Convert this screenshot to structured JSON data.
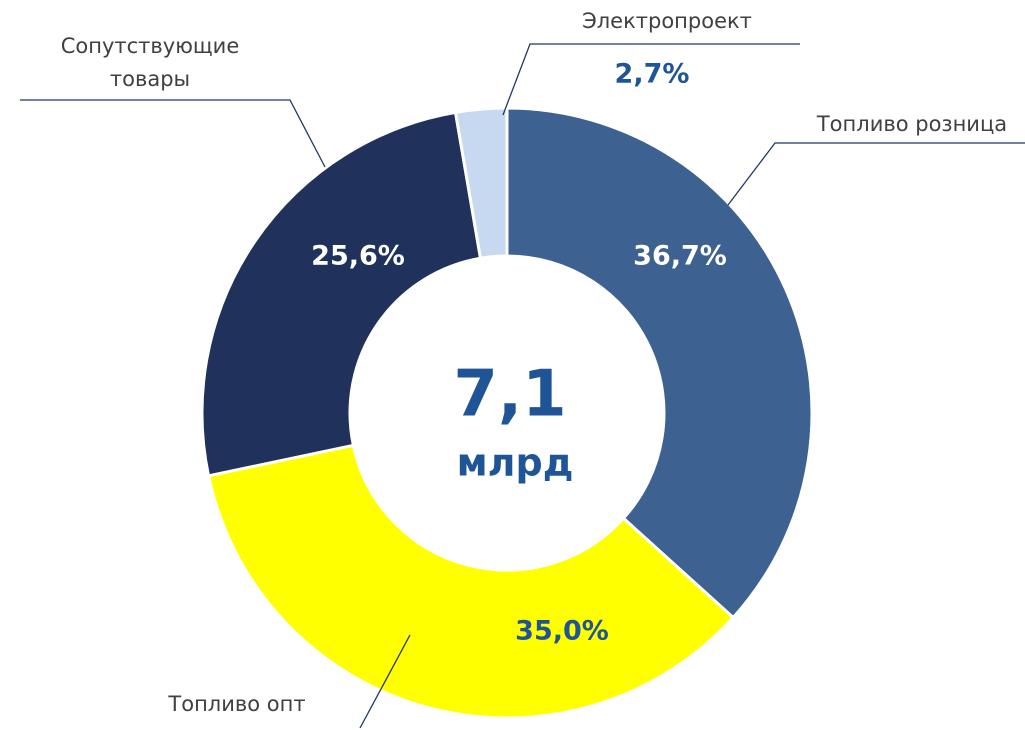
{
  "chart_data": {
    "type": "donut",
    "categories": [
      "Топливо розница",
      "Топливо опт",
      "Сопутствующие товары",
      "Электропроект"
    ],
    "values": [
      36.7,
      35.0,
      25.6,
      2.7
    ],
    "value_labels": [
      "36,7%",
      "35,0%",
      "25,6%",
      "2,7%"
    ],
    "colors": [
      "#3d6190",
      "#ffff00",
      "#20325b",
      "#c6d9f1"
    ],
    "center_value": "7,1",
    "center_unit": "млрд"
  }
}
